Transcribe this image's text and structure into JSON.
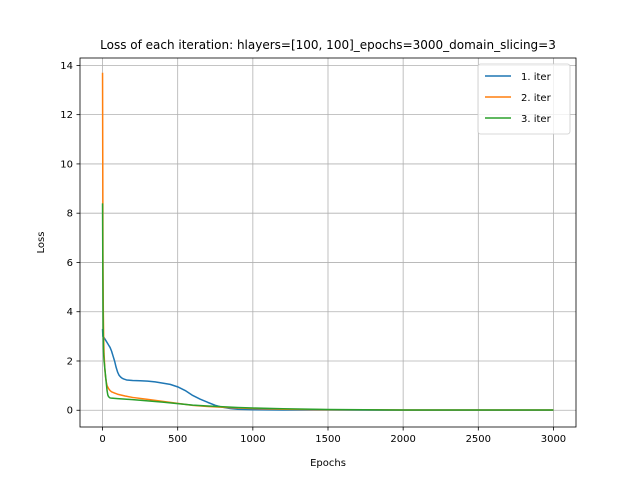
{
  "chart_data": {
    "type": "line",
    "title": "Loss of each iteration: hlayers=[100, 100]_epochs=3000_domain_slicing=3",
    "xlabel": "Epochs",
    "ylabel": "Loss",
    "xlim": [
      -150,
      3150
    ],
    "ylim": [
      -0.68,
      14.3
    ],
    "xticks": [
      0,
      500,
      1000,
      1500,
      2000,
      2500,
      3000
    ],
    "yticks": [
      0,
      2,
      4,
      6,
      8,
      10,
      12,
      14
    ],
    "grid": true,
    "legend_position": "top-right",
    "colors": [
      "#1f77b4",
      "#ff7f0e",
      "#2ca02c"
    ],
    "series": [
      {
        "name": "1. iter",
        "x": [
          0,
          2,
          5,
          10,
          20,
          30,
          40,
          50,
          60,
          70,
          80,
          90,
          100,
          110,
          120,
          130,
          140,
          150,
          160,
          180,
          200,
          250,
          300,
          350,
          400,
          450,
          500,
          550,
          600,
          650,
          700,
          750,
          800,
          850,
          900,
          1000,
          1200,
          1500,
          2000,
          2500,
          3000
        ],
        "y": [
          3.3,
          3.0,
          3.0,
          2.95,
          2.85,
          2.75,
          2.65,
          2.55,
          2.4,
          2.2,
          2.0,
          1.75,
          1.55,
          1.42,
          1.35,
          1.3,
          1.27,
          1.25,
          1.23,
          1.22,
          1.21,
          1.2,
          1.18,
          1.15,
          1.1,
          1.05,
          0.95,
          0.8,
          0.6,
          0.45,
          0.32,
          0.2,
          0.12,
          0.07,
          0.04,
          0.02,
          0.01,
          0.01,
          0.005,
          0.005,
          0.005
        ]
      },
      {
        "name": "2. iter",
        "x": [
          0,
          1,
          2,
          3,
          5,
          8,
          10,
          15,
          20,
          25,
          30,
          40,
          50,
          60,
          80,
          100,
          150,
          200,
          300,
          400,
          500,
          600,
          700,
          800,
          900,
          1000,
          1200,
          1500,
          2000,
          2500,
          3000
        ],
        "y": [
          13.7,
          11.0,
          8.5,
          6.0,
          4.0,
          2.8,
          2.3,
          1.7,
          1.35,
          1.15,
          1.0,
          0.88,
          0.8,
          0.75,
          0.7,
          0.65,
          0.58,
          0.52,
          0.44,
          0.36,
          0.28,
          0.2,
          0.15,
          0.12,
          0.09,
          0.07,
          0.04,
          0.02,
          0.01,
          0.01,
          0.01
        ]
      },
      {
        "name": "3. iter",
        "x": [
          0,
          1,
          2,
          3,
          4,
          6,
          8,
          10,
          12,
          15,
          20,
          25,
          30,
          35,
          40,
          50,
          60,
          80,
          100,
          150,
          200,
          300,
          400,
          500,
          600,
          700,
          800,
          900,
          1000,
          1200,
          1500,
          2000,
          2500,
          3000
        ],
        "y": [
          8.4,
          7.0,
          5.5,
          4.2,
          3.3,
          2.5,
          2.2,
          2.0,
          1.9,
          1.7,
          1.4,
          1.1,
          0.8,
          0.62,
          0.55,
          0.5,
          0.49,
          0.48,
          0.47,
          0.45,
          0.43,
          0.38,
          0.33,
          0.27,
          0.21,
          0.17,
          0.14,
          0.11,
          0.09,
          0.06,
          0.03,
          0.01,
          0.01,
          0.01
        ]
      }
    ]
  }
}
